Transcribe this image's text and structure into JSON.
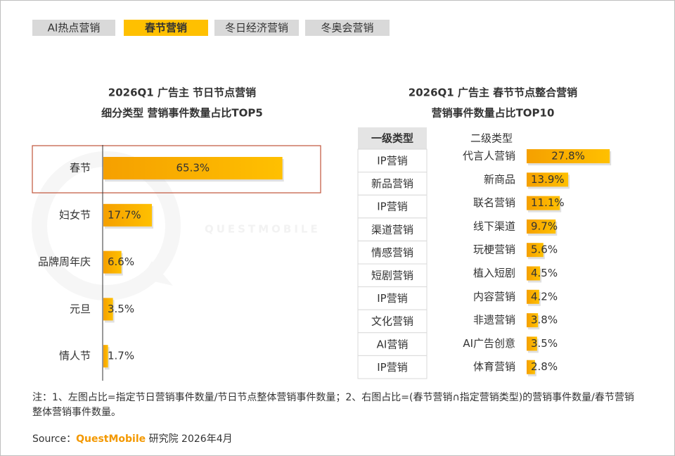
{
  "tabs": [
    "AI热点营销",
    "春节营销",
    "冬日经济营销",
    "冬奥会营销"
  ],
  "active_tab": 1,
  "watermark": "QUESTMOBILE",
  "chart_data": [
    {
      "type": "bar",
      "orientation": "horizontal",
      "title": "2026Q1 广告主 节日节点营销",
      "subtitle": "细分类型 营销事件数量占比TOP5",
      "categories": [
        "春节",
        "妇女节",
        "品牌周年庆",
        "元旦",
        "情人节"
      ],
      "values": [
        65.3,
        17.7,
        6.6,
        3.5,
        1.7
      ],
      "value_labels": [
        "65.3%",
        "17.7%",
        "6.6%",
        "3.5%",
        "1.7%"
      ],
      "color": "#FFC000"
    },
    {
      "type": "bar",
      "orientation": "horizontal",
      "title": "2026Q1 广告主 春节节点整合营销",
      "subtitle": "营销事件数量占比TOP10",
      "level1_header": "一级类型",
      "level2_header": "二级类型",
      "level1": [
        "IP营销",
        "新品营销",
        "IP营销",
        "渠道营销",
        "情感营销",
        "短剧营销",
        "IP营销",
        "文化营销",
        "AI营销",
        "IP营销"
      ],
      "categories": [
        "代言人营销",
        "新商品",
        "联名营销",
        "线下渠道",
        "玩梗营销",
        "植入短剧",
        "内容营销",
        "非遗营销",
        "AI广告创意",
        "体育营销"
      ],
      "values": [
        27.8,
        13.9,
        11.1,
        9.7,
        5.6,
        4.5,
        4.2,
        3.8,
        3.5,
        2.8
      ],
      "value_labels": [
        "27.8%",
        "13.9%",
        "11.1%",
        "9.7%",
        "5.6%",
        "4.5%",
        "4.2%",
        "3.8%",
        "3.5%",
        "2.8%"
      ],
      "color": "#FFC000"
    }
  ],
  "note": "注：1、左图占比=指定节日营销事件数量/节日节点整体营销事件数量；2、右图占比=(春节营销∩指定营销类型)的营销事件数量/春节营销整体营销事件数量。",
  "source": {
    "label": "Source：",
    "brand": "QuestMobile",
    "text": "研究院 2026年4月"
  }
}
